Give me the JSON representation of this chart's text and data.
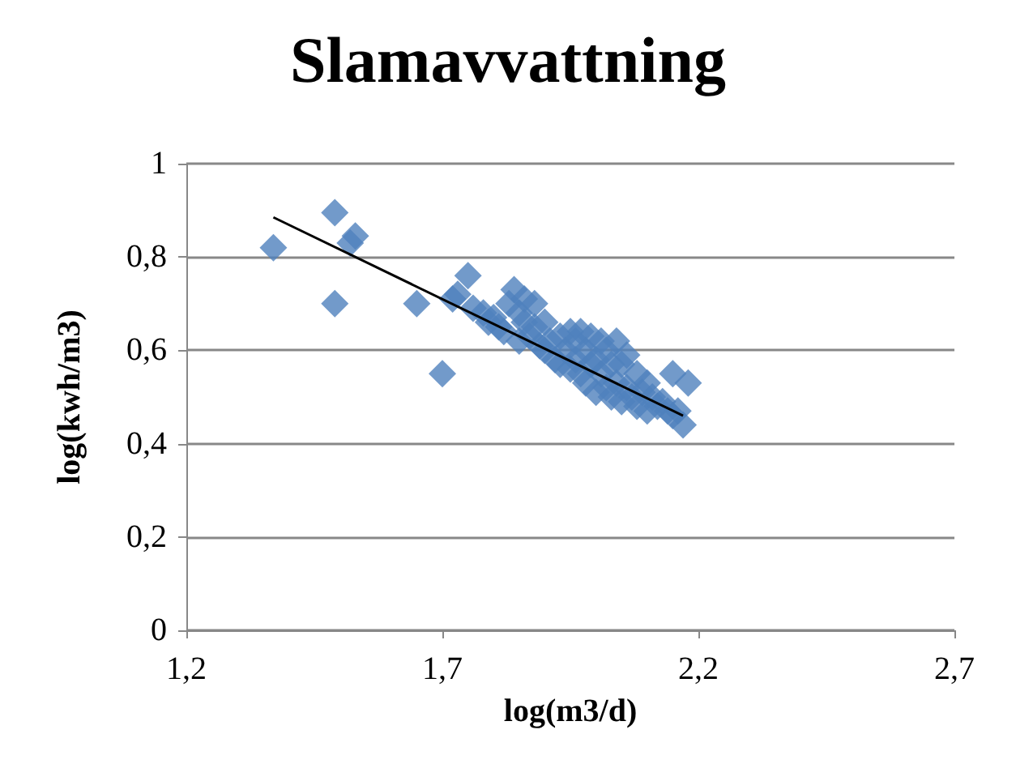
{
  "chart_data": {
    "type": "scatter",
    "title": "Slamavvattning",
    "xlabel": "log(m3/d)",
    "ylabel": "log(kwh/m3)",
    "xlim": [
      1.2,
      2.7
    ],
    "xticks": [
      {
        "value": 1.2,
        "label": "1,2"
      },
      {
        "value": 1.7,
        "label": "1,7"
      },
      {
        "value": 2.2,
        "label": "2,2"
      },
      {
        "value": 2.7,
        "label": "2,7"
      }
    ],
    "ylim": [
      0,
      1
    ],
    "yticks": [
      {
        "value": 0,
        "label": "0"
      },
      {
        "value": 0.2,
        "label": "0,2"
      },
      {
        "value": 0.4,
        "label": "0,4"
      },
      {
        "value": 0.6,
        "label": "0,6"
      },
      {
        "value": 0.8,
        "label": "0,8"
      },
      {
        "value": 1,
        "label": "1"
      }
    ],
    "grid": "y",
    "marker": "diamond",
    "series": [
      {
        "color": "#4f81bd",
        "x": [
          1.37,
          1.49,
          1.49,
          1.52,
          1.53,
          1.65,
          1.7,
          1.72,
          1.73,
          1.75,
          1.76,
          1.78,
          1.79,
          1.8,
          1.81,
          1.82,
          1.83,
          1.84,
          1.85,
          1.85,
          1.86,
          1.86,
          1.87,
          1.88,
          1.88,
          1.89,
          1.9,
          1.9,
          1.91,
          1.92,
          1.93,
          1.93,
          1.94,
          1.95,
          1.95,
          1.96,
          1.96,
          1.97,
          1.97,
          1.98,
          1.98,
          1.99,
          1.99,
          2.0,
          2.0,
          2.01,
          2.01,
          2.02,
          2.02,
          2.03,
          2.03,
          2.04,
          2.04,
          2.05,
          2.05,
          2.06,
          2.06,
          2.07,
          2.08,
          2.08,
          2.09,
          2.1,
          2.1,
          2.11,
          2.12,
          2.13,
          2.14,
          2.15,
          2.15,
          2.16,
          2.17,
          2.18
        ],
        "values": [
          0.82,
          0.895,
          0.7,
          0.83,
          0.845,
          0.7,
          0.55,
          0.71,
          0.72,
          0.76,
          0.69,
          0.68,
          0.66,
          0.67,
          0.65,
          0.64,
          0.7,
          0.73,
          0.62,
          0.68,
          0.66,
          0.71,
          0.63,
          0.65,
          0.7,
          0.61,
          0.6,
          0.66,
          0.62,
          0.58,
          0.57,
          0.63,
          0.6,
          0.56,
          0.64,
          0.58,
          0.62,
          0.55,
          0.64,
          0.53,
          0.6,
          0.57,
          0.63,
          0.51,
          0.58,
          0.55,
          0.62,
          0.52,
          0.6,
          0.5,
          0.57,
          0.53,
          0.62,
          0.49,
          0.57,
          0.52,
          0.59,
          0.5,
          0.48,
          0.55,
          0.51,
          0.47,
          0.53,
          0.5,
          0.48,
          0.49,
          0.47,
          0.46,
          0.55,
          0.47,
          0.44,
          0.53
        ]
      },
      {
        "type": "line",
        "color": "#000000",
        "x": [
          1.37,
          2.17
        ],
        "values": [
          0.885,
          0.46
        ],
        "marker": "none"
      }
    ]
  }
}
